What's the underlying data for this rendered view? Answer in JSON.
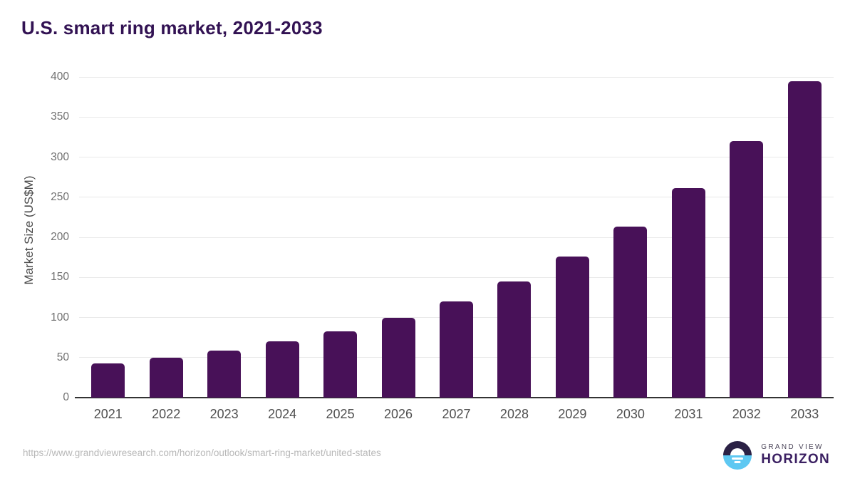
{
  "page": {
    "title": "U.S. smart ring market, 2021-2033"
  },
  "footer": {
    "source_url": "https://www.grandviewresearch.com/horizon/outlook/smart-ring-market/united-states",
    "logo_top": "GRAND VIEW",
    "logo_bottom": "HORIZON"
  },
  "colors": {
    "bar": "#481158",
    "title": "#321253",
    "gridline": "#e9e9e9",
    "axis_line": "#333333",
    "y_tick": "#707070",
    "x_tick": "#4f4f4f",
    "y_axis_title": "#4a4a4a",
    "source_url": "#b8b8b8",
    "logo_dark_half": "#2b2145",
    "logo_blue_half": "#5ec8f2",
    "logo_text_top": "#4a4458",
    "logo_text_bottom": "#3b2062"
  },
  "chart_data": {
    "type": "bar",
    "title": "U.S. smart ring market, 2021-2033",
    "categories": [
      "2021",
      "2022",
      "2023",
      "2024",
      "2025",
      "2026",
      "2027",
      "2028",
      "2029",
      "2030",
      "2031",
      "2032",
      "2033"
    ],
    "values": [
      43,
      50,
      59,
      70,
      83,
      100,
      120,
      145,
      176,
      213,
      261,
      320,
      395
    ],
    "xlabel": "",
    "ylabel": "Market Size (US$M)",
    "ylim": [
      0,
      400
    ],
    "ytick_step": 50,
    "grid": true,
    "legend": false,
    "bar_color": "#481158"
  }
}
